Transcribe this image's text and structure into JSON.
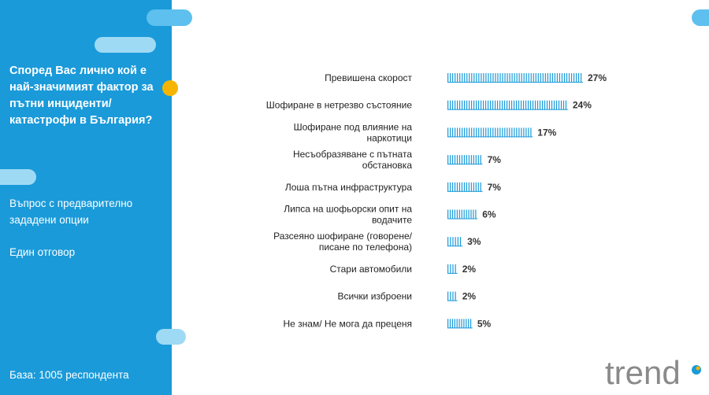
{
  "left_panel": {
    "question": "Според Вас лично кой е най-значимият фактор за пътни инциденти/ катастрофи в България?",
    "note_options": "Въпрос с предварително зададени опции",
    "note_answer": "Един отговор",
    "base": "База:  1005 респондента"
  },
  "logo": {
    "text": "trend"
  },
  "colors": {
    "panel": "#1a9ad9",
    "bar": "#1a9ad9",
    "accent_dot": "#f6b400",
    "pill": "#5ec0ee"
  },
  "chart_data": {
    "type": "bar",
    "orientation": "horizontal",
    "categories": [
      [
        "Превишена скорост"
      ],
      [
        "Шофиране в нетрезво състояние"
      ],
      [
        "Шофиране под влияние на",
        "наркотици"
      ],
      [
        "Несъобразяване с пътната",
        "обстановка"
      ],
      [
        "Лоша пътна инфраструктура"
      ],
      [
        "Липса на шофьорски опит на",
        "водачите"
      ],
      [
        "Разсеяно шофиране (говорене/",
        "писане по телефона)"
      ],
      [
        "Стари автомобили"
      ],
      [
        "Всички изброени"
      ],
      [
        "Не знам/ Не мога да преценя"
      ]
    ],
    "values": [
      27,
      24,
      17,
      7,
      7,
      6,
      3,
      2,
      2,
      5
    ],
    "value_labels": [
      "27%",
      "24%",
      "17%",
      "7%",
      "7%",
      "6%",
      "3%",
      "2%",
      "2%",
      "5%"
    ],
    "xlim": [
      0,
      27
    ]
  }
}
